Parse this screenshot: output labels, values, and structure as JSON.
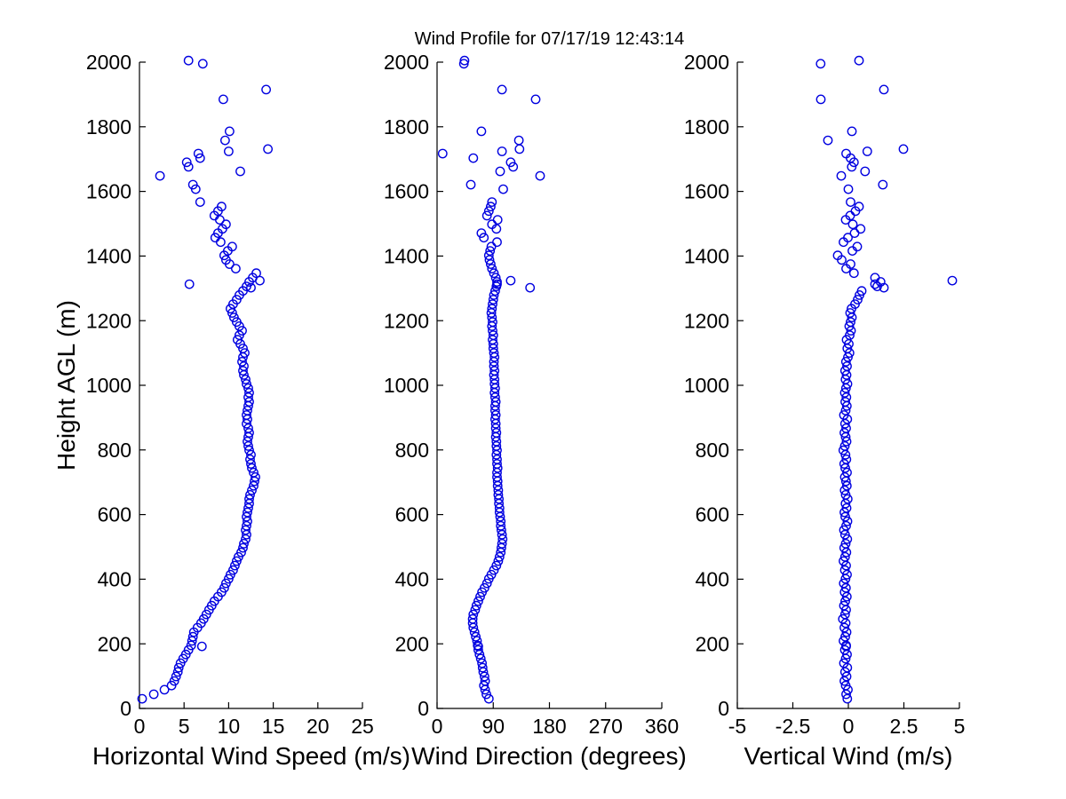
{
  "chart_data": {
    "type": "scatter",
    "title": "Wind Profile for  07/17/19 12:43:14",
    "ylabel": "Height AGL (m)",
    "ylim": [
      0,
      2000
    ],
    "yticks": [
      0,
      200,
      400,
      600,
      800,
      1000,
      1200,
      1400,
      1600,
      1800,
      2000
    ],
    "grid": false,
    "marker": {
      "shape": "open-circle",
      "color": "#0000e0"
    },
    "panels": [
      {
        "xlabel": "Horizontal Wind Speed (m/s)",
        "xlim": [
          0,
          25
        ],
        "xticks": [
          0,
          5,
          10,
          15,
          20,
          25
        ],
        "xtick_labels": [
          "0",
          "5",
          "10",
          "15",
          "20",
          "25"
        ],
        "series_field": "wind_speed_ms"
      },
      {
        "xlabel": "Wind Direction (degrees)",
        "xlim": [
          0,
          360
        ],
        "xticks": [
          0,
          90,
          180,
          270,
          360
        ],
        "xtick_labels": [
          "0",
          "90",
          "180",
          "270",
          "360"
        ],
        "series_field": "wind_direction_deg"
      },
      {
        "xlabel": "Vertical Wind (m/s)",
        "xlim": [
          -5,
          5
        ],
        "xticks": [
          -5,
          -2.5,
          0,
          2.5,
          5
        ],
        "xtick_labels": [
          "-5",
          "-2.5",
          "0",
          "2.5",
          "5"
        ],
        "series_field": "vertical_wind_ms"
      }
    ],
    "columns": [
      "height_m",
      "wind_speed_ms",
      "wind_direction_deg",
      "vertical_wind_ms"
    ],
    "points": [
      [
        30,
        0.3,
        83,
        -0.05
      ],
      [
        44,
        1.6,
        79,
        -0.1
      ],
      [
        58,
        2.8,
        77,
        -0.02
      ],
      [
        71,
        3.6,
        75,
        -0.12
      ],
      [
        85,
        3.9,
        77,
        -0.18
      ],
      [
        99,
        4.1,
        76,
        -0.08
      ],
      [
        113,
        4.3,
        74,
        -0.15
      ],
      [
        126,
        4.4,
        73,
        -0.05
      ],
      [
        140,
        4.6,
        72,
        -0.2
      ],
      [
        154,
        4.9,
        70,
        -0.12
      ],
      [
        167,
        5.2,
        68,
        -0.06
      ],
      [
        181,
        5.5,
        66,
        -0.16
      ],
      [
        192,
        7.0,
        66,
        -0.1
      ],
      [
        195,
        5.8,
        65,
        -0.1
      ],
      [
        209,
        5.9,
        64,
        -0.22
      ],
      [
        222,
        6.0,
        62,
        -0.14
      ],
      [
        236,
        6.1,
        60,
        -0.08
      ],
      [
        250,
        6.5,
        58,
        -0.18
      ],
      [
        264,
        6.9,
        57,
        -0.12
      ],
      [
        277,
        7.2,
        57,
        -0.25
      ],
      [
        291,
        7.5,
        58,
        -0.15
      ],
      [
        305,
        7.8,
        61,
        -0.1
      ],
      [
        318,
        8.1,
        63,
        -0.2
      ],
      [
        332,
        8.4,
        66,
        -0.14
      ],
      [
        346,
        8.8,
        69,
        -0.07
      ],
      [
        360,
        9.2,
        72,
        -0.17
      ],
      [
        373,
        9.5,
        76,
        -0.11
      ],
      [
        387,
        9.7,
        80,
        -0.21
      ],
      [
        401,
        10.0,
        83,
        -0.13
      ],
      [
        414,
        10.2,
        87,
        -0.06
      ],
      [
        428,
        10.5,
        91,
        -0.16
      ],
      [
        442,
        10.7,
        95,
        -0.1
      ],
      [
        456,
        10.9,
        98,
        -0.22
      ],
      [
        469,
        11.1,
        100,
        -0.15
      ],
      [
        483,
        11.4,
        102,
        -0.09
      ],
      [
        497,
        11.6,
        103,
        -0.19
      ],
      [
        510,
        11.7,
        104,
        -0.12
      ],
      [
        524,
        11.9,
        105,
        -0.05
      ],
      [
        538,
        12.0,
        104,
        -0.15
      ],
      [
        552,
        11.9,
        103,
        -0.2
      ],
      [
        565,
        12.0,
        102,
        -0.1
      ],
      [
        579,
        12.1,
        102,
        -0.04
      ],
      [
        593,
        12.0,
        101,
        -0.14
      ],
      [
        607,
        12.1,
        100,
        -0.18
      ],
      [
        620,
        12.2,
        100,
        -0.08
      ],
      [
        634,
        12.3,
        99,
        -0.13
      ],
      [
        648,
        12.3,
        99,
        -0.03
      ],
      [
        661,
        12.4,
        98,
        -0.12
      ],
      [
        675,
        12.6,
        98,
        -0.17
      ],
      [
        689,
        12.8,
        97,
        -0.07
      ],
      [
        703,
        12.9,
        97,
        -0.11
      ],
      [
        716,
        13.0,
        96,
        -0.16
      ],
      [
        730,
        12.8,
        96,
        -0.06
      ],
      [
        744,
        12.6,
        97,
        -0.14
      ],
      [
        757,
        12.5,
        96,
        -0.19
      ],
      [
        771,
        12.4,
        96,
        -0.09
      ],
      [
        785,
        12.5,
        95,
        -0.13
      ],
      [
        799,
        12.3,
        96,
        -0.23
      ],
      [
        812,
        12.2,
        95,
        -0.16
      ],
      [
        826,
        12.1,
        95,
        -0.08
      ],
      [
        840,
        12.2,
        94,
        -0.12
      ],
      [
        853,
        12.3,
        95,
        -0.18
      ],
      [
        867,
        12.2,
        94,
        -0.1
      ],
      [
        881,
        12.0,
        94,
        -0.15
      ],
      [
        895,
        12.1,
        93,
        -0.05
      ],
      [
        908,
        12.0,
        94,
        -0.2
      ],
      [
        922,
        12.1,
        93,
        -0.12
      ],
      [
        936,
        12.2,
        93,
        -0.07
      ],
      [
        949,
        12.3,
        94,
        -0.14
      ],
      [
        963,
        12.2,
        93,
        -0.09
      ],
      [
        977,
        12.3,
        92,
        -0.16
      ],
      [
        991,
        12.2,
        93,
        -0.11
      ],
      [
        1004,
        12.0,
        92,
        -0.04
      ],
      [
        1018,
        11.9,
        92,
        -0.13
      ],
      [
        1032,
        11.7,
        91,
        -0.08
      ],
      [
        1045,
        11.6,
        92,
        -0.15
      ],
      [
        1059,
        11.7,
        91,
        -0.06
      ],
      [
        1073,
        11.5,
        91,
        -0.11
      ],
      [
        1087,
        11.6,
        92,
        -0.02
      ],
      [
        1100,
        11.8,
        91,
        0.05
      ],
      [
        1114,
        11.6,
        90,
        -0.05
      ],
      [
        1128,
        11.3,
        90,
        0.02
      ],
      [
        1141,
        11.0,
        89,
        -0.08
      ],
      [
        1155,
        11.2,
        90,
        0.06
      ],
      [
        1169,
        11.5,
        89,
        0.12
      ],
      [
        1183,
        11.2,
        88,
        0.04
      ],
      [
        1196,
        10.9,
        89,
        0.1
      ],
      [
        1210,
        10.6,
        88,
        0.16
      ],
      [
        1224,
        10.4,
        87,
        0.08
      ],
      [
        1237,
        10.2,
        88,
        0.14
      ],
      [
        1251,
        10.5,
        89,
        0.3
      ],
      [
        1265,
        10.9,
        90,
        0.42
      ],
      [
        1279,
        11.2,
        91,
        0.5
      ],
      [
        1292,
        11.6,
        93,
        0.6
      ],
      [
        1302,
        12.5,
        149,
        1.6
      ],
      [
        1306,
        12.0,
        95,
        1.3
      ],
      [
        1313,
        5.6,
        96,
        1.2
      ],
      [
        1320,
        12.3,
        96,
        1.45
      ],
      [
        1324,
        13.5,
        118,
        4.68
      ],
      [
        1333,
        12.7,
        94,
        1.2
      ],
      [
        1347,
        13.1,
        91,
        0.25
      ],
      [
        1361,
        10.8,
        88,
        -0.1
      ],
      [
        1375,
        10.1,
        86,
        0.1
      ],
      [
        1388,
        9.7,
        84,
        -0.3
      ],
      [
        1402,
        9.5,
        83,
        -0.48
      ],
      [
        1416,
        9.9,
        85,
        0.18
      ],
      [
        1429,
        10.4,
        87,
        0.4
      ],
      [
        1443,
        9.1,
        96,
        -0.22
      ],
      [
        1457,
        8.5,
        75,
        -0.02
      ],
      [
        1471,
        8.8,
        71,
        0.28
      ],
      [
        1484,
        9.3,
        95,
        0.55
      ],
      [
        1498,
        9.7,
        88,
        0.2
      ],
      [
        1512,
        9.0,
        97,
        -0.12
      ],
      [
        1525,
        8.4,
        80,
        0.08
      ],
      [
        1539,
        8.8,
        83,
        0.32
      ],
      [
        1553,
        9.2,
        86,
        0.48
      ],
      [
        1567,
        6.8,
        88,
        0.1
      ],
      [
        1607,
        6.3,
        106,
        0.0
      ],
      [
        1621,
        6.0,
        54,
        1.55
      ],
      [
        1648,
        2.3,
        165,
        -0.32
      ],
      [
        1662,
        11.3,
        101,
        0.75
      ],
      [
        1676,
        5.5,
        122,
        0.15
      ],
      [
        1690,
        5.3,
        118,
        0.25
      ],
      [
        1703,
        6.8,
        58,
        0.1
      ],
      [
        1717,
        6.6,
        9,
        -0.1
      ],
      [
        1724,
        10.0,
        104,
        0.85
      ],
      [
        1731,
        14.4,
        132,
        2.48
      ],
      [
        1758,
        9.6,
        131,
        -0.92
      ],
      [
        1786,
        10.1,
        71,
        0.16
      ],
      [
        1885,
        9.4,
        158,
        -1.24
      ],
      [
        1915,
        14.2,
        104,
        1.6
      ],
      [
        1995,
        7.1,
        43,
        -1.25
      ],
      [
        2005,
        5.5,
        44,
        0.48
      ]
    ]
  }
}
